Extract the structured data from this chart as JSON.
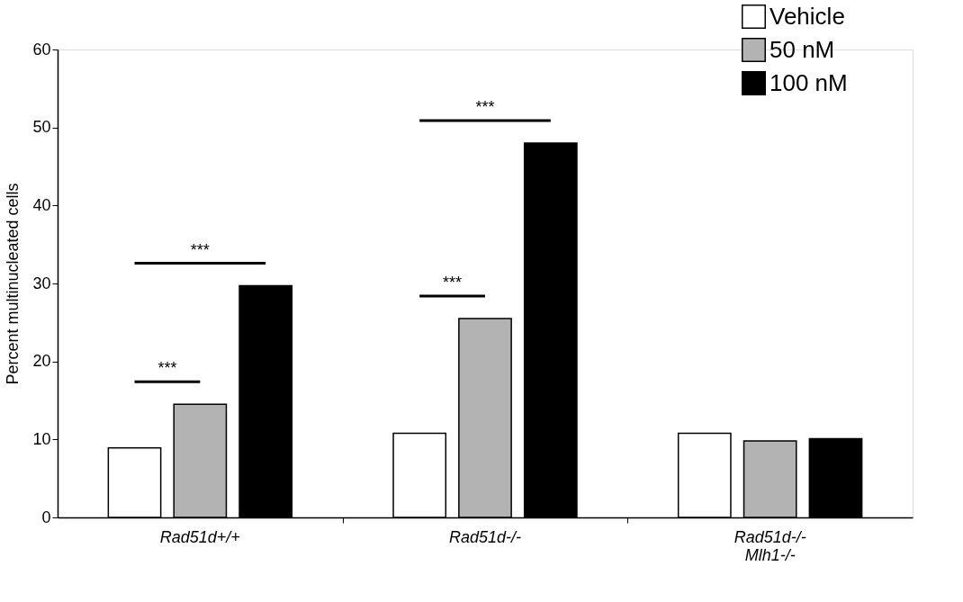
{
  "chart_data": {
    "type": "bar",
    "ylabel": "Percent multinucleated cells",
    "categories": [
      "Rad51d+/+",
      "Rad51d-/-",
      "Rad51d-/-\nMlh1-/-"
    ],
    "series": [
      {
        "name": "Vehicle",
        "color": "#ffffff",
        "values": [
          8.9,
          10.8,
          10.8
        ]
      },
      {
        "name": "50 nM",
        "color": "#b3b3b3",
        "values": [
          14.5,
          25.5,
          9.8
        ]
      },
      {
        "name": "100 nM",
        "color": "#000000",
        "values": [
          29.7,
          48.0,
          10.1
        ]
      }
    ],
    "ylim": [
      0,
      60
    ],
    "yticks": [
      0,
      10,
      20,
      30,
      40,
      50,
      60
    ],
    "grid": false,
    "legend": "top right",
    "annotations": [
      "***",
      "***",
      "***",
      "***"
    ]
  }
}
